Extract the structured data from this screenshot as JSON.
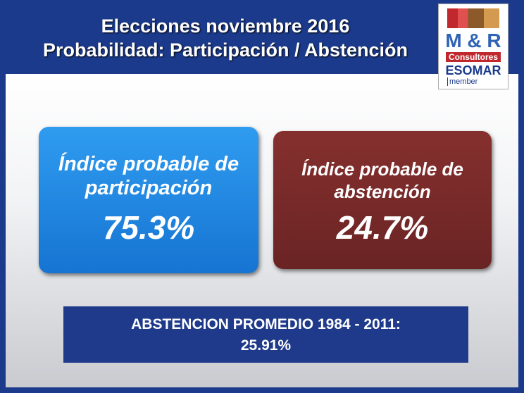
{
  "header": {
    "title_line1": "Elecciones noviembre 2016",
    "title_line2": "Probabilidad: Participación / Abstención"
  },
  "logo": {
    "brand": "M & R",
    "company": "Consultores",
    "association": "ESOMAR",
    "membership": "member"
  },
  "boxes": [
    {
      "label": "Índice probable de participación",
      "value": "75.3%"
    },
    {
      "label": "Índice probable de abstención",
      "value": "24.7%"
    }
  ],
  "footer": {
    "label": "ABSTENCION PROMEDIO 1984 - 2011:",
    "value": "25.91%"
  }
}
